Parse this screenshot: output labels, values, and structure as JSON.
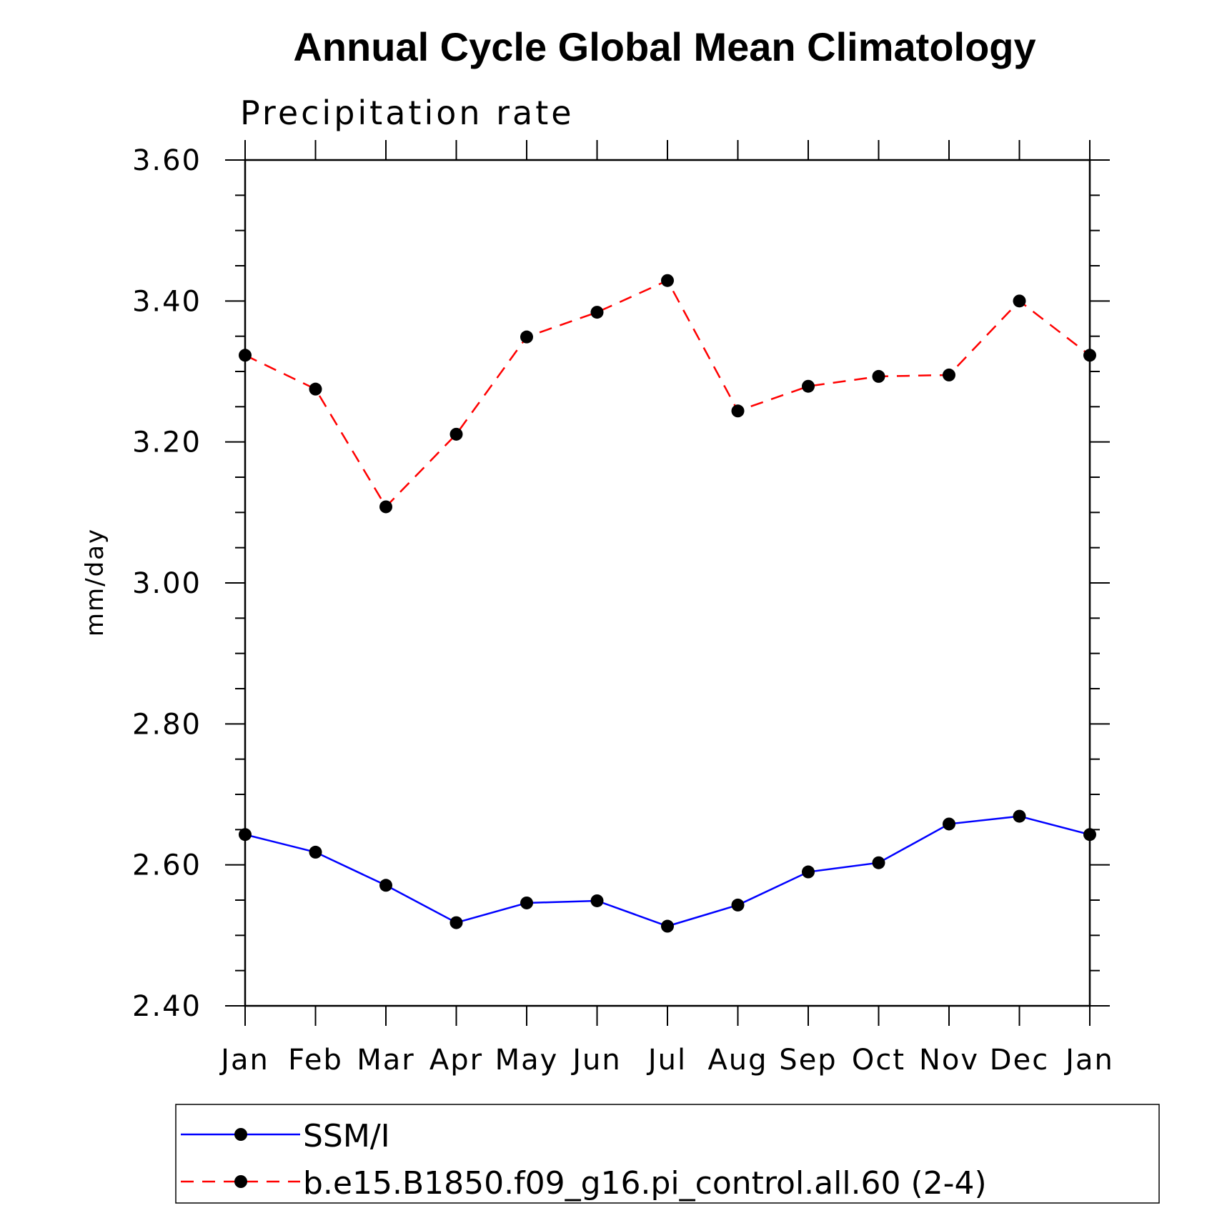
{
  "chart_data": {
    "type": "line",
    "title": "Annual Cycle Global Mean Climatology",
    "subtitle": "Precipitation rate",
    "xlabel": "",
    "ylabel": "mm/day",
    "categories": [
      "Jan",
      "Feb",
      "Mar",
      "Apr",
      "May",
      "Jun",
      "Jul",
      "Aug",
      "Sep",
      "Oct",
      "Nov",
      "Dec",
      "Jan"
    ],
    "ylim": [
      2.4,
      3.6
    ],
    "yticks": [
      "2.40",
      "2.60",
      "2.80",
      "3.00",
      "3.20",
      "3.40",
      "3.60"
    ],
    "ytick_values": [
      2.4,
      2.6,
      2.8,
      3.0,
      3.2,
      3.4,
      3.6
    ],
    "grid": false,
    "legend_position": "bottom",
    "series": [
      {
        "name": "SSM/I",
        "color": "#0000ff",
        "dash": "solid",
        "marker": "filled-circle",
        "values": [
          2.643,
          2.618,
          2.571,
          2.518,
          2.546,
          2.549,
          2.513,
          2.543,
          2.59,
          2.603,
          2.658,
          2.669,
          2.643
        ]
      },
      {
        "name": "b.e15.B1850.f09_g16.pi_control.all.60 (2-4)",
        "color": "#ff0000",
        "dash": "dashed",
        "marker": "filled-circle",
        "values": [
          3.323,
          3.275,
          3.108,
          3.211,
          3.349,
          3.384,
          3.429,
          3.244,
          3.279,
          3.293,
          3.295,
          3.4,
          3.323
        ]
      }
    ]
  }
}
